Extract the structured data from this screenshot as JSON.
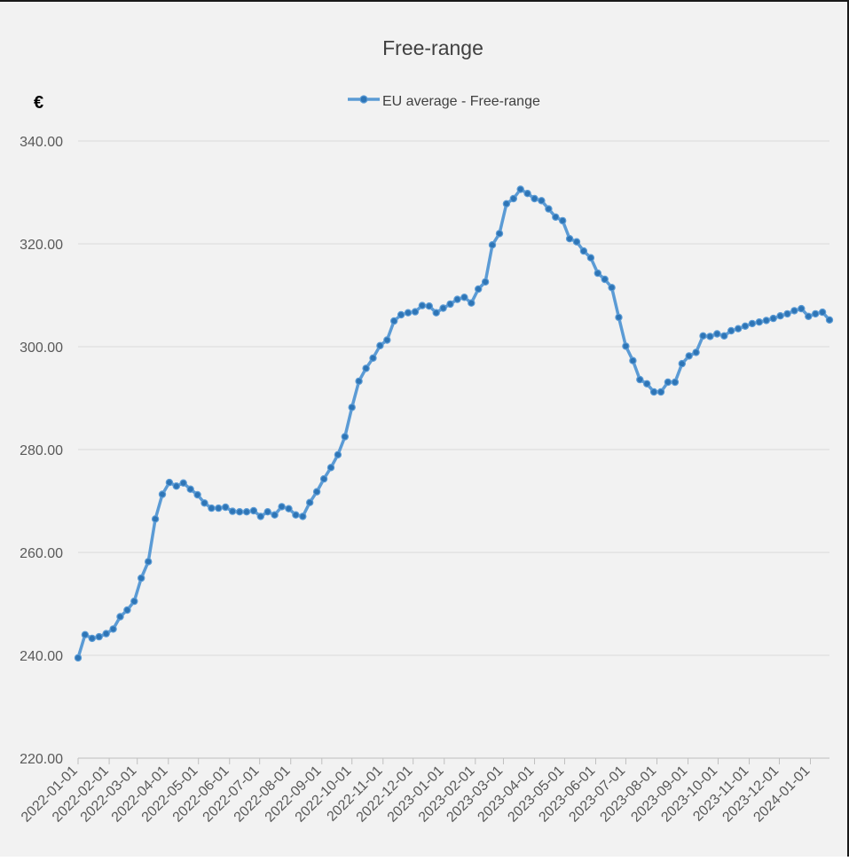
{
  "chart_data": {
    "type": "line",
    "title": "Free-range",
    "ylabel": "€",
    "xlabel": "",
    "ylim": [
      220,
      340
    ],
    "yticks": [
      "220.00",
      "240.00",
      "260.00",
      "280.00",
      "300.00",
      "320.00",
      "340.00"
    ],
    "xticks": [
      "2022-01-01",
      "2022-02-01",
      "2022-03-01",
      "2022-04-01",
      "2022-05-01",
      "2022-06-01",
      "2022-07-01",
      "2022-08-01",
      "2022-09-01",
      "2022-10-01",
      "2022-11-01",
      "2022-12-01",
      "2023-01-01",
      "2023-02-01",
      "2023-03-01",
      "2023-04-01",
      "2023-05-01",
      "2023-06-01",
      "2023-07-01",
      "2023-08-01",
      "2023-09-01",
      "2023-10-01",
      "2023-11-01",
      "2023-12-01",
      "2024-01-01"
    ],
    "grid": true,
    "legend": "top-center",
    "x_start": "2022-01-01",
    "x_step_days": 7,
    "series": [
      {
        "name": "EU average - Free-range",
        "color": "#5b9bd5",
        "marker_color": "#2e75b6",
        "values": [
          239.5,
          244.0,
          243.3,
          243.6,
          244.2,
          245.1,
          247.5,
          248.8,
          250.5,
          255.0,
          258.2,
          266.5,
          271.3,
          273.6,
          272.9,
          273.5,
          272.3,
          271.2,
          269.6,
          268.6,
          268.6,
          268.8,
          268.0,
          267.9,
          267.9,
          268.1,
          267.0,
          267.9,
          267.3,
          268.9,
          268.5,
          267.3,
          267.0,
          269.7,
          271.8,
          274.3,
          276.5,
          279.0,
          282.5,
          288.2,
          293.3,
          295.8,
          297.8,
          300.2,
          301.3,
          305.0,
          306.2,
          306.6,
          306.8,
          308.0,
          307.9,
          306.6,
          307.5,
          308.3,
          309.2,
          309.6,
          308.5,
          311.2,
          312.6,
          319.8,
          322.0,
          327.8,
          328.8,
          330.6,
          329.8,
          328.8,
          328.4,
          326.8,
          325.2,
          324.5,
          321.0,
          320.4,
          318.6,
          317.3,
          314.3,
          313.1,
          311.5,
          305.7,
          300.1,
          297.3,
          293.6,
          292.8,
          291.2,
          291.2,
          293.1,
          293.1,
          296.7,
          298.2,
          298.9,
          302.1,
          302.0,
          302.5,
          302.1,
          303.1,
          303.5,
          304.0,
          304.5,
          304.8,
          305.1,
          305.5,
          306.0,
          306.4,
          307.0,
          307.4,
          305.9,
          306.4,
          306.7,
          305.2
        ]
      }
    ]
  }
}
